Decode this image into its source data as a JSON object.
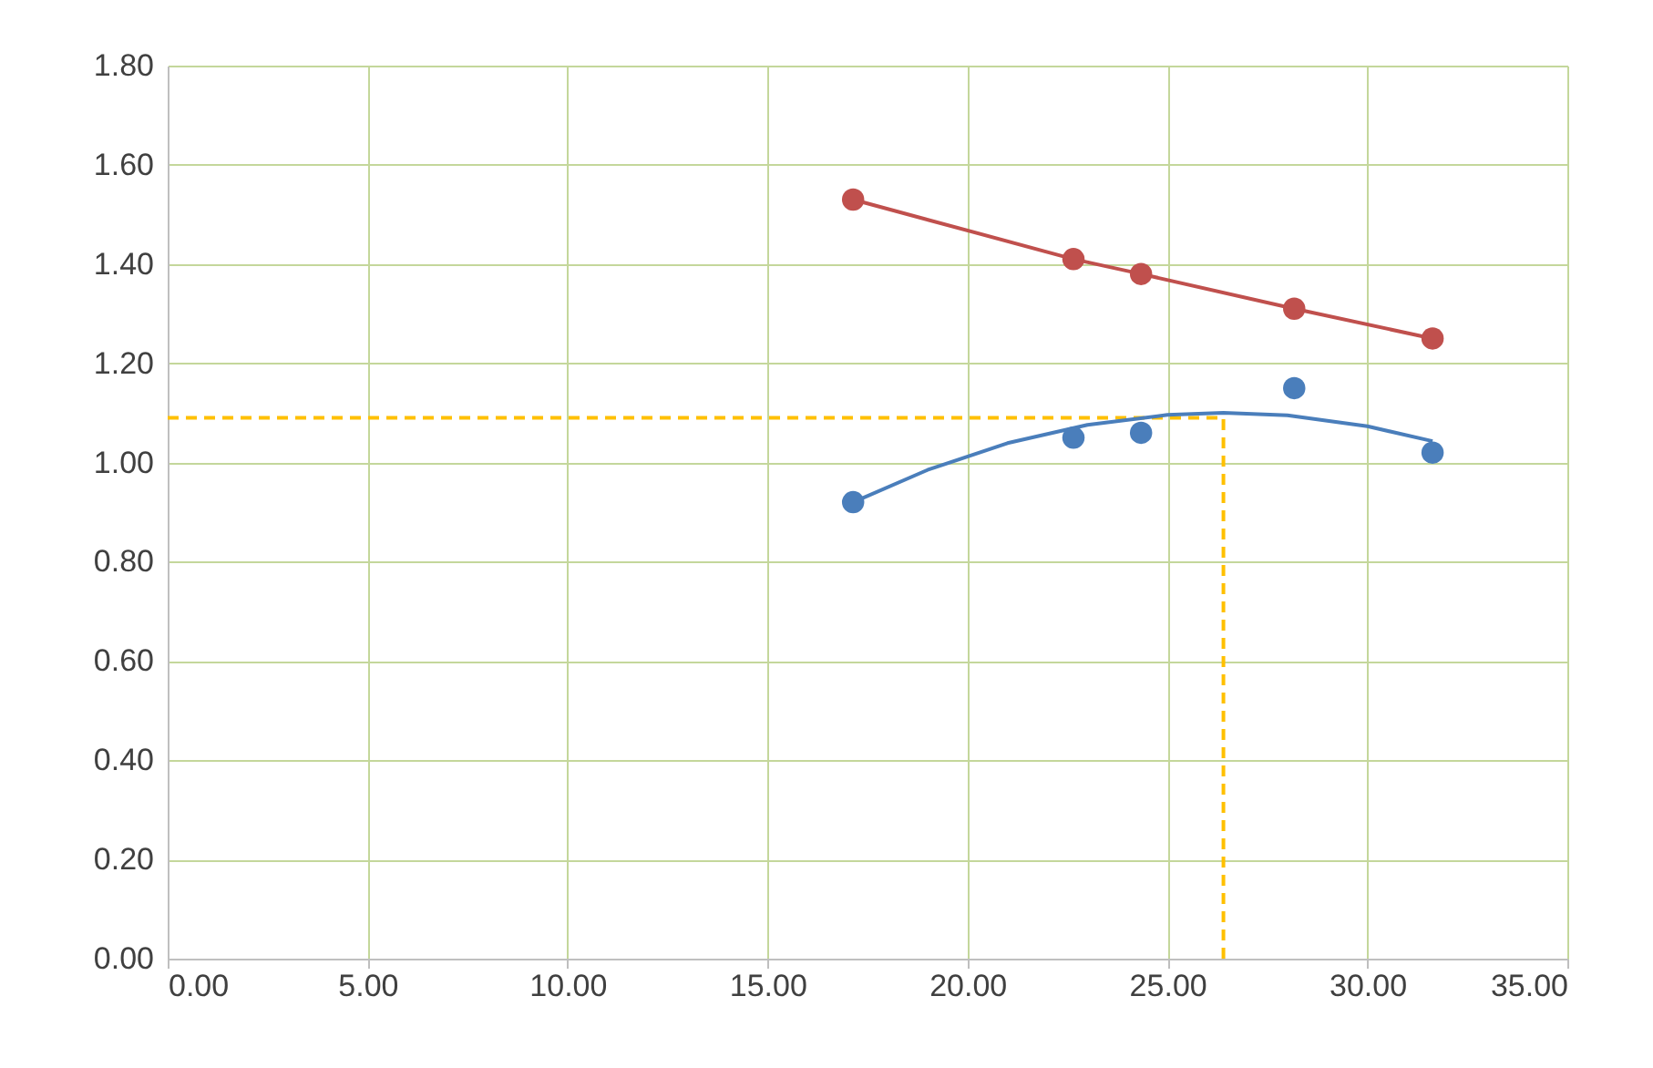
{
  "chart_data": {
    "type": "scatter",
    "xlim": [
      0,
      35
    ],
    "ylim": [
      0,
      1.8
    ],
    "xticks": [
      {
        "value": 0,
        "label": "0.00"
      },
      {
        "value": 5,
        "label": "5.00"
      },
      {
        "value": 10,
        "label": "10.00"
      },
      {
        "value": 15,
        "label": "15.00"
      },
      {
        "value": 20,
        "label": "20.00"
      },
      {
        "value": 25,
        "label": "25.00"
      },
      {
        "value": 30,
        "label": "30.00"
      },
      {
        "value": 35,
        "label": "35.00"
      }
    ],
    "yticks": [
      {
        "value": 0,
        "label": "0.00"
      },
      {
        "value": 0.2,
        "label": "0.20"
      },
      {
        "value": 0.4,
        "label": "0.40"
      },
      {
        "value": 0.6,
        "label": "0.60"
      },
      {
        "value": 0.8,
        "label": "0.80"
      },
      {
        "value": 1,
        "label": "1.00"
      },
      {
        "value": 1.2,
        "label": "1.20"
      },
      {
        "value": 1.4,
        "label": "1.40"
      },
      {
        "value": 1.6,
        "label": "1.60"
      },
      {
        "value": 1.8,
        "label": "1.80"
      }
    ],
    "grid": true,
    "marker": "circle",
    "series": [
      {
        "type": "line",
        "line_style": "dashed",
        "marker": "none",
        "color": "#ffc000",
        "x": [
          0,
          26.4,
          26.4
        ],
        "values": [
          1.09,
          1.09,
          0
        ]
      },
      {
        "type": "line",
        "marker": "none",
        "color": "#4a7ebb",
        "x": [
          17.14,
          19,
          21,
          23,
          25,
          26.4,
          28,
          30,
          31.63
        ],
        "values": [
          0.92,
          0.985,
          1.039,
          1.076,
          1.096,
          1.1,
          1.095,
          1.073,
          1.043
        ]
      },
      {
        "type": "line",
        "marker": "circle",
        "color": "#c0504d",
        "x": [
          17.14,
          22.65,
          24.34,
          28.17,
          31.63
        ],
        "values": [
          1.53,
          1.41,
          1.38,
          1.31,
          1.25
        ]
      },
      {
        "color": "#4a7ebb",
        "x": [
          17.14,
          22.65,
          24.34,
          28.17,
          31.63
        ],
        "values": [
          0.92,
          1.05,
          1.06,
          1.15,
          1.02
        ]
      }
    ]
  }
}
